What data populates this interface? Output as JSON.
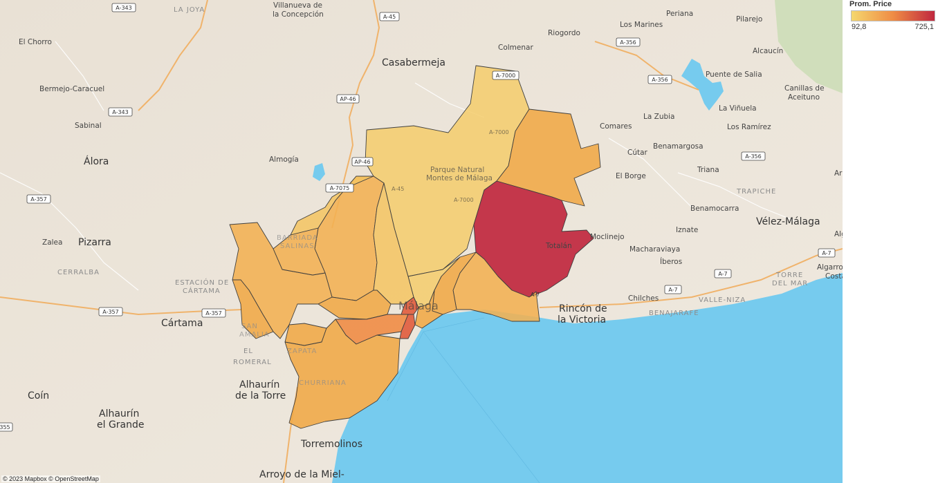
{
  "legend": {
    "title": "Prom. Price",
    "min_label": "92,8",
    "max_label": "725,1",
    "color_min": "#f5d76e",
    "color_mid": "#ef8c45",
    "color_max": "#c0283f"
  },
  "map": {
    "attribution": "© 2023 Mapbox © OpenStreetMap",
    "water_color": "#76cbee",
    "land_color": "#eee7dc",
    "places_large": {
      "casabermeja": "Casabermeja",
      "alora": "Álora",
      "pizarra": "Pizarra",
      "cartama": "Cártama",
      "alhaurin_torre_1": "Alhaurín",
      "alhaurin_torre_2": "de la Torre",
      "coin": "Coín",
      "alhaurin_grande_1": "Alhaurín",
      "alhaurin_grande_2": "el Grande",
      "torremolinos": "Torremolinos",
      "arroyo": "Arroyo de la Miel-",
      "rincon_1": "Rincón de",
      "rincon_2": "la Victoria",
      "velez": "Vélez-Málaga",
      "malaga": "Málaga"
    },
    "places_small": {
      "villanueva_1": "Villanueva de",
      "villanueva_2": "la Concepción",
      "el_chorro": "El Chorro",
      "bermejo": "Bermejo-Caracuel",
      "sabinal": "Sabinal",
      "riogordo": "Riogordo",
      "colmenar": "Colmenar",
      "los_marines": "Los Marines",
      "periana": "Periana",
      "pilarejo": "Pilarejo",
      "alcaucin": "Alcaucín",
      "puente_salia": "Puente de Salia",
      "canillas_1": "Canillas de",
      "canillas_2": "Aceituno",
      "la_vinuela": "La Viñuela",
      "los_ramirez": "Los Ramírez",
      "la_zubia": "La Zubia",
      "comares": "Comares",
      "cutar": "Cútar",
      "benamargosa": "Benamargosa",
      "triana": "Triana",
      "el_borge": "El Borge",
      "benamocarra": "Benamocarra",
      "iznate": "Iznate",
      "moclinejo": "Moclinejo",
      "macharaviaya": "Macharaviaya",
      "iberos": "Íberos",
      "chilches": "Chilches",
      "almogia": "Almogía",
      "zalea": "Zalea",
      "totalan": "Totalán",
      "parque_1": "Parque Natural",
      "parque_2": "Montes de Málaga",
      "algarro_1": "Algarro",
      "algarro_2": "Costa",
      "ar": "Ar",
      "alg": "Alg"
    },
    "areas": {
      "la_joya": "LA JOYA",
      "cerralba": "CERRALBA",
      "estacion_1": "ESTACIÓN DE",
      "estacion_2": "CÁRTAMA",
      "el_romeral_1": "EL",
      "el_romeral_2": "ROMERAL",
      "trapiche": "TRAPICHE",
      "torre_mar_1": "TORRE",
      "torre_mar_2": "DEL MAR",
      "valle_niza": "VALLE-NIZA",
      "benajarafe": "BENAJARAFE",
      "barriada_1": "BARRIADA",
      "barriada_2": "SALINAS",
      "santa_1": "SAN",
      "santa_2": "AMALIA",
      "zapata": "ZAPATA",
      "churriana": "CHURRIANA"
    },
    "roads": {
      "a343a": "A-343",
      "a343b": "A-343",
      "a45": "A-45",
      "ap46": "AP-46",
      "a7000a": "A-7000",
      "a7000b": "A-7000",
      "a7000c": "A-7000",
      "a356a": "A-356",
      "a356b": "A-356",
      "a356c": "A-356",
      "a357a": "A-357",
      "a357b": "A-357",
      "a357c": "A-357",
      "a7075": "A-7075",
      "ap46b": "AP-46",
      "a7a": "A-7",
      "a7b": "A-7",
      "a7c": "A-7",
      "a7d": "A-7",
      "a45b": "A-45",
      "r355": "355"
    }
  }
}
